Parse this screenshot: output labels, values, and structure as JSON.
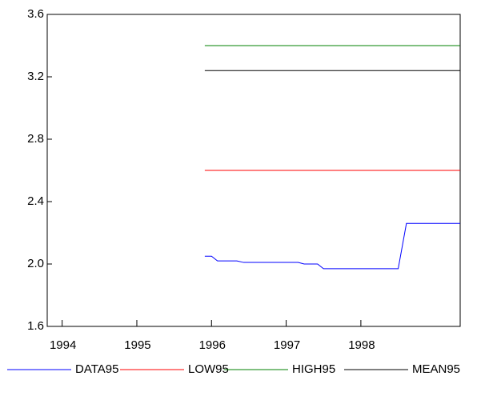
{
  "chart_data": {
    "type": "line",
    "xlim": [
      1993.8,
      1999.33
    ],
    "xticks": [
      1994,
      1995,
      1996,
      1997,
      1998
    ],
    "ylim": [
      1.6,
      3.6
    ],
    "yticks": [
      1.6,
      {
        "value": 2,
        "label": "2.0"
      },
      2.4,
      2.8,
      3.2,
      3.6
    ],
    "legend": "bottom",
    "series": [
      {
        "name": "DATA95",
        "color": "#0000ff",
        "x": [
          1995.91,
          1996.0,
          1996.08,
          1996.34,
          1996.43,
          1997.16,
          1997.24,
          1997.42,
          1997.5,
          1998.5,
          1998.61,
          1999.33
        ],
        "values": [
          2.05,
          2.05,
          2.02,
          2.02,
          2.01,
          2.01,
          2.0,
          2.0,
          1.97,
          1.97,
          2.26,
          2.26
        ]
      },
      {
        "name": "LOW95",
        "color": "#ff0000",
        "x": [
          1995.91,
          1999.33
        ],
        "values": [
          2.6,
          2.6
        ]
      },
      {
        "name": "HIGH95",
        "color": "#008000",
        "x": [
          1995.91,
          1999.33
        ],
        "values": [
          3.4,
          3.4
        ]
      },
      {
        "name": "MEAN95",
        "color": "#000000",
        "x": [
          1995.91,
          1999.33
        ],
        "values": [
          3.24,
          3.24
        ]
      }
    ]
  }
}
